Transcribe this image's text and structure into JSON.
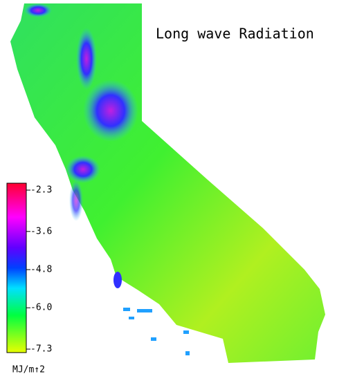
{
  "title": "Long wave Radiation",
  "colorbar": {
    "ticks": [
      -2.3,
      -3.6,
      -4.8,
      {
        "value": -6,
        "label": "-6.0"
      },
      -7.3
    ],
    "unit": "MJ/m↑2"
  }
}
